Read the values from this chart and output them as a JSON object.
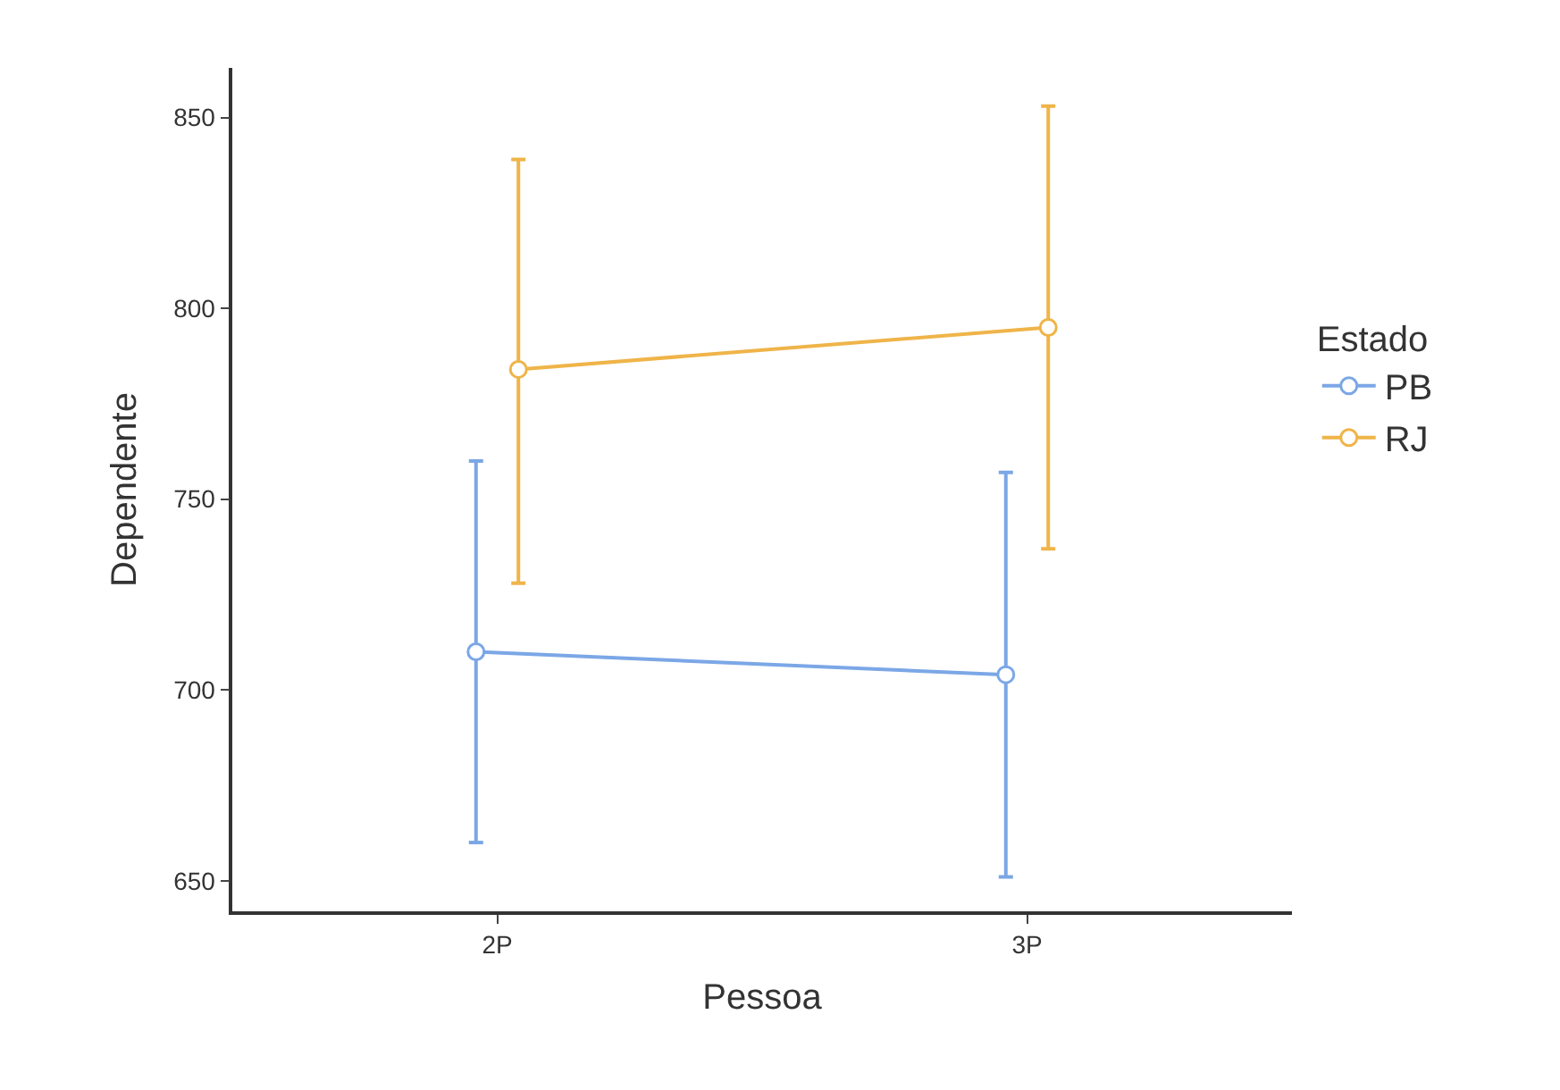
{
  "chart_data": {
    "type": "line",
    "xlabel": "Pessoa",
    "ylabel": "Dependente",
    "legend_title": "Estado",
    "categories": [
      "2P",
      "3P"
    ],
    "series": [
      {
        "name": "PB",
        "color": "#7ba7e6",
        "values": [
          710,
          704
        ],
        "errors": [
          [
            660,
            760
          ],
          [
            651,
            757
          ]
        ]
      },
      {
        "name": "RJ",
        "color": "#efb449",
        "values": [
          784,
          795
        ],
        "errors": [
          [
            728,
            839
          ],
          [
            737,
            853
          ]
        ]
      }
    ],
    "ylim": [
      642,
      863
    ],
    "yticks": [
      650,
      700,
      750,
      800,
      850
    ],
    "legend": "right",
    "marker": "circle",
    "line_style": "solid"
  }
}
